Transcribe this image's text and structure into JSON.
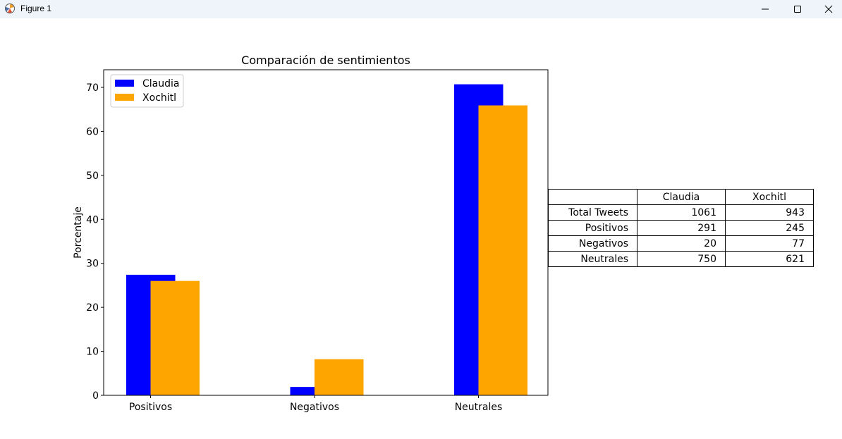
{
  "window": {
    "title": "Figure 1",
    "icon": "matplotlib-icon",
    "controls": [
      "minimize-icon",
      "maximize-icon",
      "close-icon"
    ]
  },
  "chart_data": {
    "type": "bar",
    "title": "Comparación de sentimientos",
    "xlabel": "",
    "ylabel": "Porcentaje",
    "categories": [
      "Positivos",
      "Negativos",
      "Neutrales"
    ],
    "series": [
      {
        "name": "Claudia",
        "color": "#0000ff",
        "values": [
          27.4,
          1.9,
          70.7
        ]
      },
      {
        "name": "Xochitl",
        "color": "#ffa500",
        "values": [
          26.0,
          8.2,
          65.9
        ]
      }
    ],
    "ylim": [
      0,
      74
    ],
    "yticks": [
      0,
      10,
      20,
      30,
      40,
      50,
      60,
      70
    ],
    "grid": false,
    "legend": "upper left"
  },
  "table": {
    "headers": [
      "",
      "Claudia",
      "Xochitl"
    ],
    "rows": [
      [
        "Total Tweets",
        "1061",
        "943"
      ],
      [
        "Positivos",
        "291",
        "245"
      ],
      [
        "Negativos",
        "20",
        "77"
      ],
      [
        "Neutrales",
        "750",
        "621"
      ]
    ]
  }
}
